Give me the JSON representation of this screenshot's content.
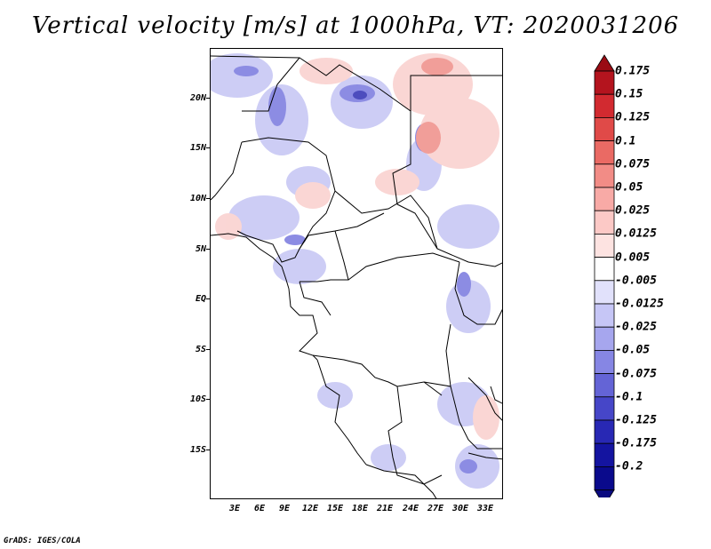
{
  "title": "Vertical velocity [m/s] at 1000hPa, VT: 2020031206",
  "credit": "GrADS: IGES/COLA",
  "map": {
    "lat_labels": [
      "20N",
      "15N",
      "10N",
      "5N",
      "EQ",
      "5S",
      "10S",
      "15S"
    ],
    "lon_labels": [
      "3E",
      "6E",
      "9E",
      "12E",
      "15E",
      "18E",
      "21E",
      "24E",
      "27E",
      "30E",
      "33E"
    ]
  },
  "colorbar": {
    "levels": [
      "0.175",
      "0.15",
      "0.125",
      "0.1",
      "0.075",
      "0.05",
      "0.025",
      "0.0125",
      "0.005",
      "-0.005",
      "-0.0125",
      "-0.025",
      "-0.05",
      "-0.075",
      "-0.1",
      "-0.125",
      "-0.175",
      "-0.2"
    ],
    "colors": [
      "#b4141e",
      "#d22a30",
      "#e04a48",
      "#ea6a64",
      "#f28c86",
      "#f8aaa6",
      "#fcc9c6",
      "#fde3e1",
      "#ffffff",
      "#e1e1fb",
      "#c6c6f6",
      "#a6a6ee",
      "#8686e4",
      "#6464d6",
      "#4646c8",
      "#2828b4",
      "#1414a0",
      "#0a0a8c"
    ],
    "top_color": "#9a0c14",
    "bottom_color": "#0a0a80"
  }
}
